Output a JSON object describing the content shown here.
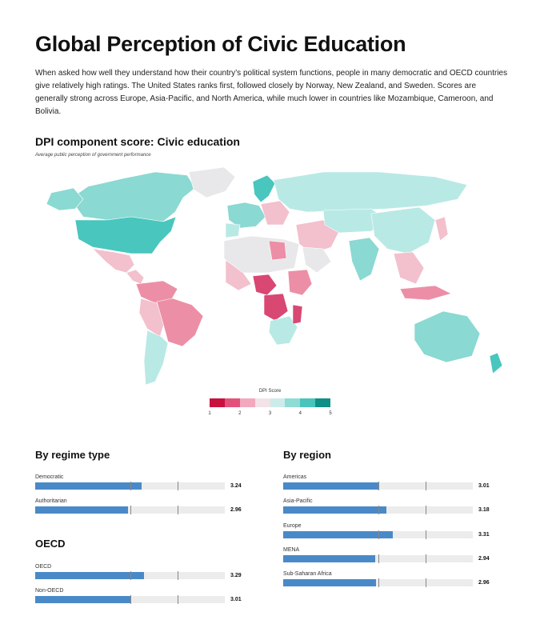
{
  "header": {
    "title": "Global Perception of Civic Education",
    "intro": "When asked how well they understand how their country’s political system functions, people in many democratic and OECD countries give relatively high ratings. The United States ranks first, followed closely by Norway, New Zealand, and Sweden. Scores are generally strong across Europe, Asia-Pacific, and North America, while much lower in countries like Mozambique, Cameroon, and Bolivia."
  },
  "map": {
    "title": "DPI component score: Civic education",
    "subtitle": "Average public perception of government performance",
    "legend": {
      "title": "DPI Score",
      "ticks": [
        "1",
        "2",
        "3",
        "4",
        "5"
      ],
      "colors": [
        "#c8103e",
        "#e2517a",
        "#f2a9bd",
        "#f3e2e7",
        "#ccecea",
        "#8fdcd5",
        "#49c4bb",
        "#0f8f86"
      ]
    },
    "colors": {
      "very_high": "#49c6bd",
      "high": "#8ad9d2",
      "mid_high": "#b9e9e5",
      "neutral": "#e8e8eb",
      "mid_low": "#f3c0cd",
      "low": "#ec8fa6",
      "very_low": "#d94773"
    }
  },
  "by_regime": {
    "title": "By regime type",
    "rows": [
      {
        "label": "Democratic",
        "value": "3.24",
        "score": 3.24
      },
      {
        "label": "Authoritarian",
        "value": "2.96",
        "score": 2.96
      }
    ]
  },
  "oecd": {
    "title": "OECD",
    "rows": [
      {
        "label": "OECD",
        "value": "3.29",
        "score": 3.29
      },
      {
        "label": "Non-OECD",
        "value": "3.01",
        "score": 3.01
      }
    ]
  },
  "by_region": {
    "title": "By region",
    "rows": [
      {
        "label": "Americas",
        "value": "3.01",
        "score": 3.01
      },
      {
        "label": "Asia-Pacific",
        "value": "3.18",
        "score": 3.18
      },
      {
        "label": "Europe",
        "value": "3.31",
        "score": 3.31
      },
      {
        "label": "MENA",
        "value": "2.94",
        "score": 2.94
      },
      {
        "label": "Sub-Saharan Africa",
        "value": "2.96",
        "score": 2.96
      }
    ]
  },
  "bar_scale": {
    "min": 1,
    "max": 5
  }
}
